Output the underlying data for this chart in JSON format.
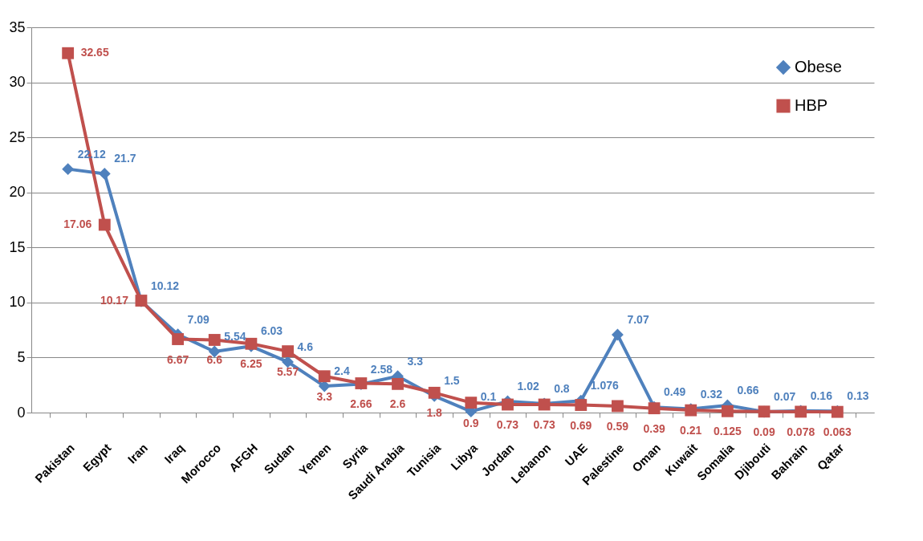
{
  "chart_data": {
    "type": "line",
    "categories": [
      "Pakistan",
      "Egypt",
      "Iran",
      "Iraq",
      "Morocco",
      "AFGH",
      "Sudan",
      "Yemen",
      "Syria",
      "Saudi Arabia",
      "Tunisia",
      "Libya",
      "Jordan",
      "Lebanon",
      "UAE",
      "Palestine",
      "Oman",
      "Kuwait",
      "Somalia",
      "Djibouti",
      "Bahrain",
      "Qatar"
    ],
    "series": [
      {
        "name": "Obese",
        "color": "#4f81bd",
        "marker": "diamond",
        "values": [
          22.12,
          21.7,
          10.12,
          7.09,
          5.54,
          6.03,
          4.6,
          2.4,
          2.58,
          3.3,
          1.5,
          0.1,
          1.02,
          0.8,
          1.076,
          7.07,
          0.49,
          0.32,
          0.66,
          0.07,
          0.16,
          0.13
        ]
      },
      {
        "name": "HBP",
        "color": "#c0504d",
        "marker": "square",
        "values": [
          32.65,
          17.06,
          10.17,
          6.67,
          6.6,
          6.25,
          5.57,
          3.3,
          2.66,
          2.6,
          1.8,
          0.9,
          0.73,
          0.73,
          0.69,
          0.59,
          0.39,
          0.21,
          0.125,
          0.09,
          0.078,
          0.063
        ]
      }
    ],
    "ylim": [
      0,
      35
    ],
    "yticks": [
      0,
      5,
      10,
      15,
      20,
      25,
      30,
      35
    ],
    "grid": "y",
    "legend": "top right",
    "data_labels": true,
    "line_style": "solid"
  }
}
